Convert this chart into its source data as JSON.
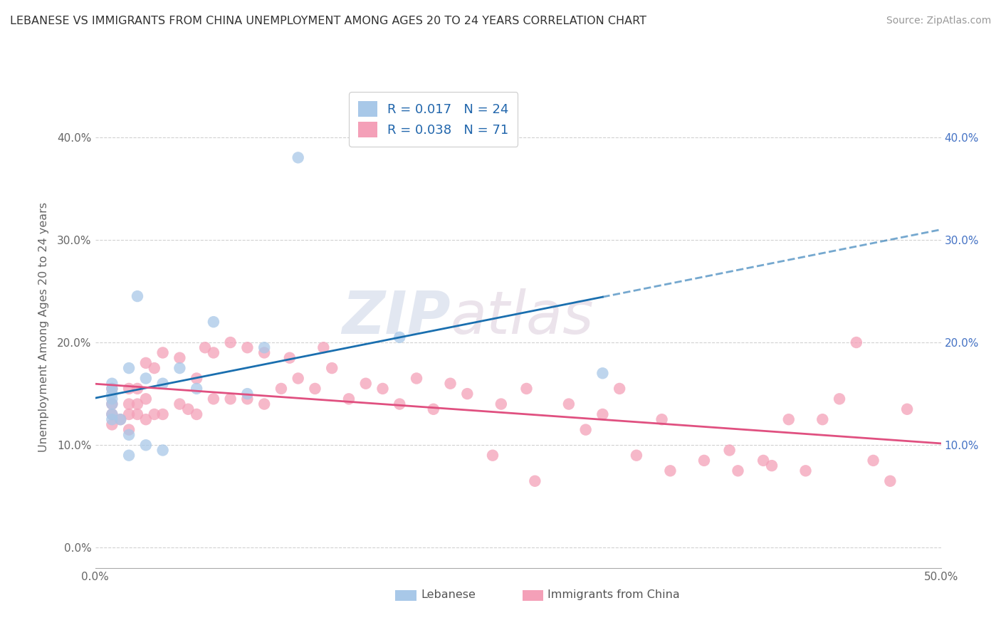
{
  "title": "LEBANESE VS IMMIGRANTS FROM CHINA UNEMPLOYMENT AMONG AGES 20 TO 24 YEARS CORRELATION CHART",
  "source": "Source: ZipAtlas.com",
  "ylabel": "Unemployment Among Ages 20 to 24 years",
  "xlim": [
    0.0,
    0.5
  ],
  "ylim": [
    -0.02,
    0.45
  ],
  "yticks": [
    0.0,
    0.1,
    0.2,
    0.3,
    0.4
  ],
  "xticks": [
    0.0,
    0.1,
    0.2,
    0.3,
    0.4,
    0.5
  ],
  "xtick_labels": [
    "0.0%",
    "",
    "",
    "",
    "",
    "50.0%"
  ],
  "right_ytick_labels": [
    "10.0%",
    "20.0%",
    "30.0%",
    "40.0%"
  ],
  "right_yticks": [
    0.1,
    0.2,
    0.3,
    0.4
  ],
  "legend_R1": "0.017",
  "legend_N1": "24",
  "legend_R2": "0.038",
  "legend_N2": "71",
  "color_lebanese": "#a8c8e8",
  "color_china": "#f4a0b8",
  "line_color_lebanese": "#1a6faf",
  "line_color_china": "#e05080",
  "background_color": "#ffffff",
  "grid_color": "#cccccc",
  "watermark_zip": "ZIP",
  "watermark_atlas": "atlas",
  "lebanese_x": [
    0.01,
    0.01,
    0.01,
    0.01,
    0.01,
    0.01,
    0.01,
    0.015,
    0.02,
    0.02,
    0.02,
    0.025,
    0.03,
    0.03,
    0.04,
    0.04,
    0.05,
    0.06,
    0.07,
    0.09,
    0.1,
    0.12,
    0.18,
    0.3
  ],
  "lebanese_y": [
    0.125,
    0.13,
    0.14,
    0.145,
    0.15,
    0.155,
    0.16,
    0.125,
    0.09,
    0.11,
    0.175,
    0.245,
    0.1,
    0.165,
    0.095,
    0.16,
    0.175,
    0.155,
    0.22,
    0.15,
    0.195,
    0.38,
    0.205,
    0.17
  ],
  "china_x": [
    0.01,
    0.01,
    0.01,
    0.01,
    0.015,
    0.02,
    0.02,
    0.02,
    0.02,
    0.025,
    0.025,
    0.025,
    0.03,
    0.03,
    0.03,
    0.035,
    0.035,
    0.04,
    0.04,
    0.05,
    0.05,
    0.055,
    0.06,
    0.06,
    0.065,
    0.07,
    0.07,
    0.08,
    0.08,
    0.09,
    0.09,
    0.1,
    0.1,
    0.11,
    0.115,
    0.12,
    0.13,
    0.135,
    0.14,
    0.15,
    0.16,
    0.17,
    0.18,
    0.19,
    0.2,
    0.21,
    0.22,
    0.235,
    0.24,
    0.255,
    0.26,
    0.28,
    0.29,
    0.3,
    0.31,
    0.32,
    0.335,
    0.34,
    0.36,
    0.375,
    0.38,
    0.395,
    0.4,
    0.41,
    0.42,
    0.43,
    0.44,
    0.45,
    0.46,
    0.47,
    0.48
  ],
  "china_y": [
    0.12,
    0.13,
    0.14,
    0.155,
    0.125,
    0.115,
    0.13,
    0.14,
    0.155,
    0.13,
    0.14,
    0.155,
    0.125,
    0.145,
    0.18,
    0.13,
    0.175,
    0.13,
    0.19,
    0.14,
    0.185,
    0.135,
    0.13,
    0.165,
    0.195,
    0.145,
    0.19,
    0.145,
    0.2,
    0.145,
    0.195,
    0.14,
    0.19,
    0.155,
    0.185,
    0.165,
    0.155,
    0.195,
    0.175,
    0.145,
    0.16,
    0.155,
    0.14,
    0.165,
    0.135,
    0.16,
    0.15,
    0.09,
    0.14,
    0.155,
    0.065,
    0.14,
    0.115,
    0.13,
    0.155,
    0.09,
    0.125,
    0.075,
    0.085,
    0.095,
    0.075,
    0.085,
    0.08,
    0.125,
    0.075,
    0.125,
    0.145,
    0.2,
    0.085,
    0.065,
    0.135
  ]
}
